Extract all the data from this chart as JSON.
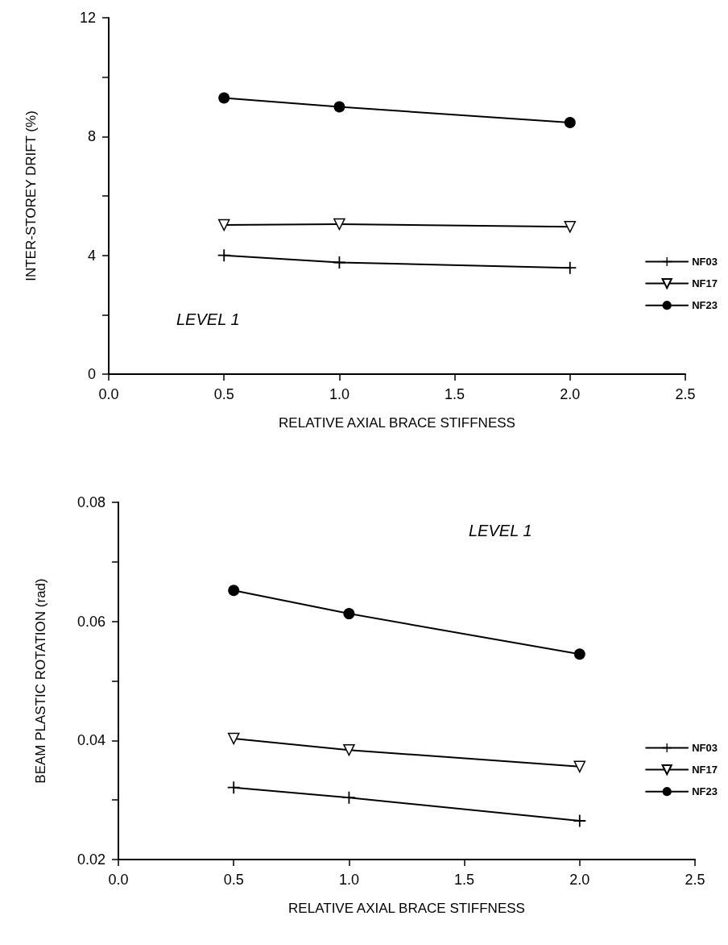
{
  "chart_data": [
    {
      "type": "line",
      "xlabel": "RELATIVE AXIAL BRACE STIFFNESS",
      "ylabel": "INTER-STOREY DRIFT (%)",
      "annotations": [
        "LEVEL 1"
      ],
      "x": [
        0.5,
        1.0,
        2.0
      ],
      "series": [
        {
          "name": "NF03",
          "color": "#000000",
          "marker": "cross",
          "values": [
            4.0,
            3.76,
            3.58
          ]
        },
        {
          "name": "NF17",
          "color": "#000000",
          "marker": "triangle",
          "values": [
            5.02,
            5.05,
            4.96
          ]
        },
        {
          "name": "NF23",
          "color": "#000000",
          "marker": "circle",
          "values": [
            9.3,
            9.0,
            8.47
          ]
        }
      ],
      "xlim": [
        0,
        2.5
      ],
      "xticks": [
        {
          "value": 0,
          "label": "0.0"
        },
        0.5,
        {
          "value": 1,
          "label": "1.0"
        },
        1.5,
        {
          "value": 2,
          "label": "2.0"
        },
        2.5
      ],
      "ylim": [
        0,
        12
      ],
      "yticks": [
        0,
        {
          "value": 2,
          "label": null
        },
        4,
        {
          "value": 6,
          "label": null
        },
        8,
        {
          "value": 10,
          "label": null
        },
        12
      ],
      "legend": "right",
      "line_style": "solid"
    },
    {
      "type": "line",
      "xlabel": "RELATIVE AXIAL BRACE STIFFNESS",
      "ylabel": "BEAM PLASTIC ROTATION (rad)",
      "annotations": [
        "LEVEL 1"
      ],
      "x": [
        0.5,
        1.0,
        2.0
      ],
      "series": [
        {
          "name": "NF03",
          "color": "#000000",
          "marker": "cross",
          "values": [
            0.0321,
            0.0304,
            0.0265
          ]
        },
        {
          "name": "NF17",
          "color": "#000000",
          "marker": "triangle",
          "values": [
            0.0403,
            0.0384,
            0.0356
          ]
        },
        {
          "name": "NF23",
          "color": "#000000",
          "marker": "circle",
          "values": [
            0.0652,
            0.0613,
            0.0545
          ]
        }
      ],
      "xlim": [
        0,
        2.5
      ],
      "xticks": [
        {
          "value": 0,
          "label": "0.0"
        },
        0.5,
        {
          "value": 1,
          "label": "1.0"
        },
        1.5,
        {
          "value": 2,
          "label": "2.0"
        },
        2.5
      ],
      "ylim": [
        0.02,
        0.08
      ],
      "yticks": [
        0.02,
        {
          "value": 0.03,
          "label": null
        },
        0.04,
        {
          "value": 0.05,
          "label": null
        },
        0.06,
        {
          "value": 0.07,
          "label": null
        },
        0.08
      ],
      "legend": "right",
      "line_style": "solid"
    }
  ]
}
